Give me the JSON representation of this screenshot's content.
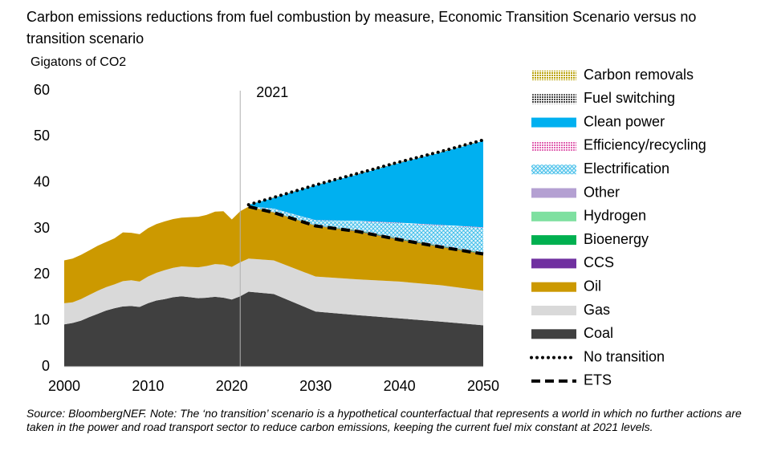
{
  "chart_data": {
    "type": "stacked_area",
    "title": "Carbon emissions reductions from fuel combustion by measure, Economic Transition Scenario versus no transition scenario",
    "y_label": "Gigatons of CO2",
    "annotation": {
      "x": 2021,
      "label": "2021"
    },
    "source": "Source: BloombergNEF. Note: The ‘no transition’ scenario is a hypothetical counterfactual that represents a world in which no further actions are taken in the power and road transport sector to reduce carbon emissions, keeping the current fuel mix constant at 2021 levels.",
    "x": [
      2000,
      2001,
      2002,
      2003,
      2004,
      2005,
      2006,
      2007,
      2008,
      2009,
      2010,
      2011,
      2012,
      2013,
      2014,
      2015,
      2016,
      2017,
      2018,
      2019,
      2020,
      2021,
      2022,
      2025,
      2030,
      2035,
      2040,
      2045,
      2050
    ],
    "xlim": [
      2000,
      2050
    ],
    "xticks": [
      2000,
      2010,
      2020,
      2030,
      2040,
      2050
    ],
    "ylim": [
      0,
      60
    ],
    "yticks": [
      0,
      10,
      20,
      30,
      40,
      50,
      60
    ],
    "series": [
      {
        "name": "Coal",
        "color": "#404040",
        "values": [
          9.2,
          9.5,
          10,
          10.8,
          11.5,
          12.2,
          12.7,
          13.1,
          13.2,
          13.0,
          13.8,
          14.4,
          14.7,
          15.1,
          15.3,
          15.1,
          14.9,
          15.0,
          15.2,
          15.0,
          14.6,
          15.3,
          16.3,
          15.8,
          12.0,
          11.2,
          10.5,
          9.8,
          9.0
        ]
      },
      {
        "name": "Gas",
        "color": "#d9d9d9",
        "values": [
          4.6,
          4.5,
          4.7,
          4.8,
          5.0,
          5.1,
          5.2,
          5.5,
          5.6,
          5.5,
          5.8,
          6.0,
          6.3,
          6.4,
          6.5,
          6.6,
          6.7,
          6.9,
          7.1,
          7.2,
          7.1,
          7.4,
          7.2,
          7.3,
          7.6,
          7.8,
          8.0,
          7.9,
          7.5
        ]
      },
      {
        "name": "Oil",
        "color": "#cc9900",
        "values": [
          9.3,
          9.5,
          9.6,
          9.7,
          9.8,
          9.8,
          10.0,
          10.6,
          10.3,
          10.3,
          10.5,
          10.6,
          10.6,
          10.6,
          10.6,
          10.8,
          11.0,
          11.1,
          11.4,
          11.6,
          10.3,
          11.1,
          11.3,
          10.4,
          11.0,
          10.4,
          9.1,
          8.3,
          8.0
        ]
      },
      {
        "name": "CCS",
        "color": "#7030a0",
        "values": [
          null,
          null,
          null,
          null,
          null,
          null,
          null,
          null,
          null,
          null,
          null,
          null,
          null,
          null,
          null,
          null,
          null,
          null,
          null,
          null,
          null,
          null,
          0,
          0.05,
          0.05,
          0.1,
          0.1,
          0.1,
          0.1
        ]
      },
      {
        "name": "Bioenergy",
        "color": "#00b050",
        "values": [
          null,
          null,
          null,
          null,
          null,
          null,
          null,
          null,
          null,
          null,
          null,
          null,
          null,
          null,
          null,
          null,
          null,
          null,
          null,
          null,
          null,
          null,
          0,
          0.05,
          0.05,
          0.1,
          0.1,
          0.1,
          0.1
        ]
      },
      {
        "name": "Hydrogen",
        "color": "#7ee0a0",
        "values": [
          null,
          null,
          null,
          null,
          null,
          null,
          null,
          null,
          null,
          null,
          null,
          null,
          null,
          null,
          null,
          null,
          null,
          null,
          null,
          null,
          null,
          null,
          0,
          0.05,
          0.05,
          0.1,
          0.1,
          0.1,
          0.1
        ]
      },
      {
        "name": "Other",
        "color": "#b4a0d2",
        "values": [
          null,
          null,
          null,
          null,
          null,
          null,
          null,
          null,
          null,
          null,
          null,
          null,
          null,
          null,
          null,
          null,
          null,
          null,
          null,
          null,
          null,
          null,
          0,
          0.05,
          0.05,
          0.1,
          0.1,
          0.1,
          0.1
        ]
      },
      {
        "name": "Electrification",
        "color": "#00b0f0",
        "pattern": "hatch",
        "values": [
          null,
          null,
          null,
          null,
          null,
          null,
          null,
          null,
          null,
          null,
          null,
          null,
          null,
          null,
          null,
          null,
          null,
          null,
          null,
          null,
          null,
          null,
          0.1,
          0.6,
          1.0,
          1.8,
          3.2,
          4.3,
          5.3
        ]
      },
      {
        "name": "Efficiency/recycling",
        "color": "#e060b0",
        "pattern": "dots",
        "values": [
          null,
          null,
          null,
          null,
          null,
          null,
          null,
          null,
          null,
          null,
          null,
          null,
          null,
          null,
          null,
          null,
          null,
          null,
          null,
          null,
          null,
          null,
          0,
          0.05,
          0.05,
          0.1,
          0.1,
          0.1,
          0.1
        ]
      },
      {
        "name": "Clean power",
        "color": "#00b0f0",
        "values": [
          null,
          null,
          null,
          null,
          null,
          null,
          null,
          null,
          null,
          null,
          null,
          null,
          null,
          null,
          null,
          null,
          null,
          null,
          null,
          null,
          null,
          null,
          0.3,
          2.35,
          7.55,
          10.1,
          13.0,
          15.8,
          18.8
        ]
      },
      {
        "name": "Fuel switching",
        "color": "#404040",
        "pattern": "dots",
        "values": [
          null,
          null,
          null,
          null,
          null,
          null,
          null,
          null,
          null,
          null,
          null,
          null,
          null,
          null,
          null,
          null,
          null,
          null,
          null,
          null,
          null,
          null,
          0,
          0.05,
          0.05,
          0.1,
          0.1,
          0.1,
          0.1
        ]
      },
      {
        "name": "Carbon removals",
        "color": "#b8a000",
        "pattern": "dots",
        "values": [
          null,
          null,
          null,
          null,
          null,
          null,
          null,
          null,
          null,
          null,
          null,
          null,
          null,
          null,
          null,
          null,
          null,
          null,
          null,
          null,
          null,
          null,
          0,
          0.05,
          0.05,
          0.1,
          0.1,
          0.1,
          0.1
        ]
      }
    ],
    "lines": [
      {
        "name": "No transition",
        "color": "#000000",
        "line_style": "dotted",
        "values": [
          null,
          null,
          null,
          null,
          null,
          null,
          null,
          null,
          null,
          null,
          null,
          null,
          null,
          null,
          null,
          null,
          null,
          null,
          null,
          null,
          null,
          null,
          35.2,
          36.8,
          39.5,
          42.0,
          44.5,
          46.8,
          49.3
        ]
      },
      {
        "name": "ETS",
        "color": "#000000",
        "line_style": "dashed",
        "values": [
          null,
          null,
          null,
          null,
          null,
          null,
          null,
          null,
          null,
          null,
          null,
          null,
          null,
          null,
          null,
          null,
          null,
          null,
          null,
          null,
          null,
          null,
          34.8,
          33.5,
          30.6,
          29.4,
          27.6,
          26.0,
          24.5
        ]
      }
    ]
  }
}
